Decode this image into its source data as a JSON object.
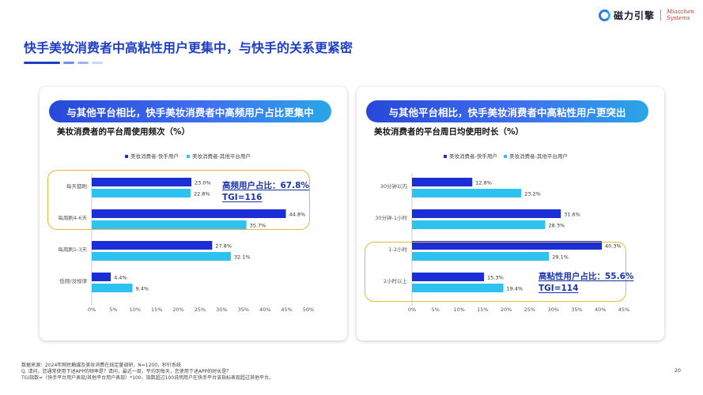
{
  "header": {
    "brand_cn": "磁力引擎",
    "brand_en_line1": "Miaozhen",
    "brand_en_line2": "Systems",
    "page_title": "快手美妆消费者中高粘性用户更集中，与快手的关系更紧密"
  },
  "colors": {
    "series_kuaishou": "#1c2fd6",
    "series_other": "#2ec2f0",
    "accent_blue": "#1e3ec6",
    "highlight_border": "#e5b93a"
  },
  "panels": [
    {
      "banner": "与其他平台相比，快手美妆消费者中高频用户占比更集中",
      "callout_line1": "高频用户占比：67.8%",
      "callout_line2": "TGI=116"
    },
    {
      "banner": "与其他平台相比，快手美妆消费者中高粘性用户更突出",
      "callout_line1": "高粘性用户占比：55.6%",
      "callout_line2": "TGI=114"
    }
  ],
  "chart_data": [
    {
      "type": "bar",
      "orientation": "horizontal",
      "title": "美妆消费者的平台周使用频次（%）",
      "categories": [
        "每天都刷",
        "每周刷4-6天",
        "每周刷1-3天",
        "低频/没规律"
      ],
      "series": [
        {
          "name": "美妆消费者-快手用户",
          "values": [
            23.0,
            44.8,
            27.8,
            4.4
          ]
        },
        {
          "name": "美妆消费者-其他平台用户",
          "values": [
            22.8,
            35.7,
            32.1,
            9.4
          ]
        }
      ],
      "value_labels": [
        [
          "23.0%",
          "44.8%",
          "27.8%",
          "4.4%"
        ],
        [
          "22.8%",
          "35.7%",
          "32.1%",
          "9.4%"
        ]
      ],
      "x_ticks": [
        "0%",
        "5%",
        "10%",
        "15%",
        "20%",
        "25%",
        "30%",
        "35%",
        "40%",
        "45%",
        "50%"
      ],
      "xlim": [
        0,
        50
      ],
      "legend_position": "top",
      "grid": false
    },
    {
      "type": "bar",
      "orientation": "horizontal",
      "title": "美妆消费者的平台周日均使用时长（%）",
      "categories": [
        "30分钟以内",
        "30分钟-1小时",
        "1-2小时",
        "2小时以上"
      ],
      "series": [
        {
          "name": "美妆消费者-快手用户",
          "values": [
            12.8,
            31.6,
            40.3,
            15.3
          ]
        },
        {
          "name": "美妆消费者-其他平台用户",
          "values": [
            23.2,
            28.3,
            29.1,
            19.4
          ]
        }
      ],
      "value_labels": [
        [
          "12.8%",
          "31.6%",
          "40.3%",
          "15.3%"
        ],
        [
          "23.2%",
          "28.3%",
          "29.1%",
          "19.4%"
        ]
      ],
      "x_ticks": [
        "0%",
        "5%",
        "10%",
        "15%",
        "20%",
        "25%",
        "30%",
        "35%",
        "40%",
        "45%"
      ],
      "xlim": [
        0,
        45
      ],
      "legend_position": "top",
      "grid": false
    }
  ],
  "footer": {
    "note1": "数据来源：2024年网民触媒及美妆消费在线定量调研，N=1200，秒针系统",
    "note2": "Q. 请问，您通常使用下述APP的频率是？请问，最近一周，平均到每天，您使用下述APP的时长是？",
    "note3": "TGI指数=（快手平台用户表现/其他平台用户表现）*100，指数超过100说明用户在快手平台该指标表现超过其他平台。",
    "page_number": "20"
  }
}
